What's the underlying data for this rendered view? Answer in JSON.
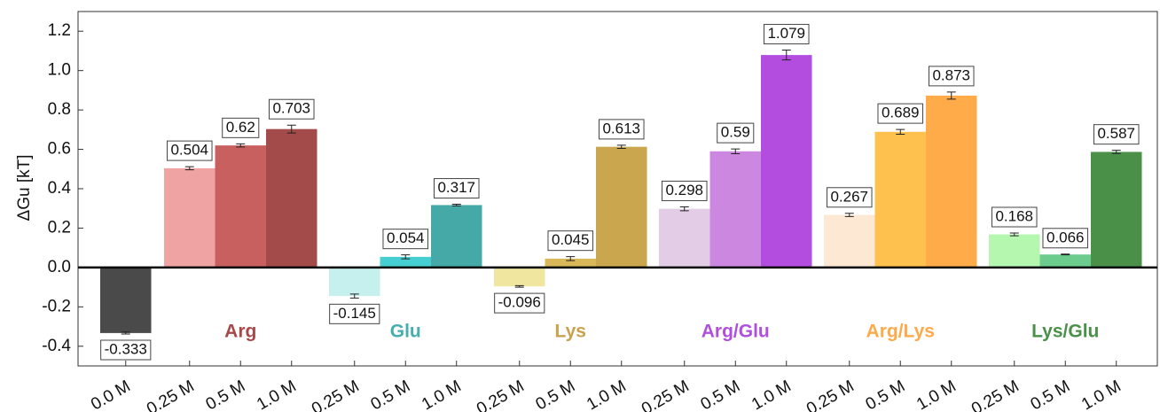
{
  "chart_data": {
    "type": "bar",
    "ylabel": "ΔGu [kT]",
    "ylim": [
      -0.5,
      1.3
    ],
    "yticks": [
      -0.4,
      -0.2,
      {
        "value": 0,
        "label": "0.0"
      },
      0.2,
      0.4,
      0.6,
      0.8,
      {
        "value": 1,
        "label": "1.0"
      },
      1.2
    ],
    "groups": [
      {
        "categories": [
          "0.0 M"
        ],
        "values": [
          -0.333
        ],
        "errors": [
          0.005
        ],
        "colors": [
          "#4a4a4a"
        ]
      },
      {
        "name": "Arg",
        "color": "#a84848",
        "categories": [
          "0.25 M",
          "0.5 M",
          "1.0 M"
        ],
        "values": [
          0.504,
          0.62,
          0.703
        ],
        "errors": [
          0.008,
          0.008,
          0.02
        ],
        "colors": [
          "#f0a3a3",
          "#c86060",
          "#a34a4a"
        ]
      },
      {
        "name": "Glu",
        "color": "#45aeae",
        "categories": [
          "0.25 M",
          "0.5 M",
          "1.0 M"
        ],
        "values": [
          -0.145,
          0.054,
          0.317
        ],
        "errors": [
          0.01,
          0.01,
          0.004
        ],
        "colors": [
          "#c5f0ee",
          "#45cfd0",
          "#45a9a8"
        ]
      },
      {
        "name": "Lys",
        "color": "#c9a24c",
        "categories": [
          "0.25 M",
          "0.5 M",
          "1.0 M"
        ],
        "values": [
          -0.096,
          0.045,
          0.613
        ],
        "errors": [
          0.004,
          0.01,
          0.008
        ],
        "colors": [
          "#f0e6a0",
          "#d8b858",
          "#caa64e"
        ]
      },
      {
        "name": "Arg/Glu",
        "color": "#b04ee0",
        "categories": [
          "0.25 M",
          "0.5 M",
          "1.0 M"
        ],
        "values": [
          0.298,
          0.59,
          1.079
        ],
        "errors": [
          0.01,
          0.012,
          0.025
        ],
        "colors": [
          "#e3cde6",
          "#cc88e0",
          "#b24de0"
        ]
      },
      {
        "name": "Arg/Lys",
        "color": "#ffaa4a",
        "categories": [
          "0.25 M",
          "0.5 M",
          "1.0 M"
        ],
        "values": [
          0.267,
          0.689,
          0.873
        ],
        "errors": [
          0.008,
          0.012,
          0.018
        ],
        "colors": [
          "#fde8d4",
          "#ffc14d",
          "#ffab4a"
        ]
      },
      {
        "name": "Lys/Glu",
        "color": "#4a9048",
        "categories": [
          "0.25 M",
          "0.5 M",
          "1.0 M"
        ],
        "values": [
          0.168,
          0.066,
          0.587
        ],
        "errors": [
          0.007,
          0.002,
          0.008
        ],
        "colors": [
          "#b6f7b0",
          "#6ccc8e",
          "#4a9048"
        ]
      }
    ]
  }
}
